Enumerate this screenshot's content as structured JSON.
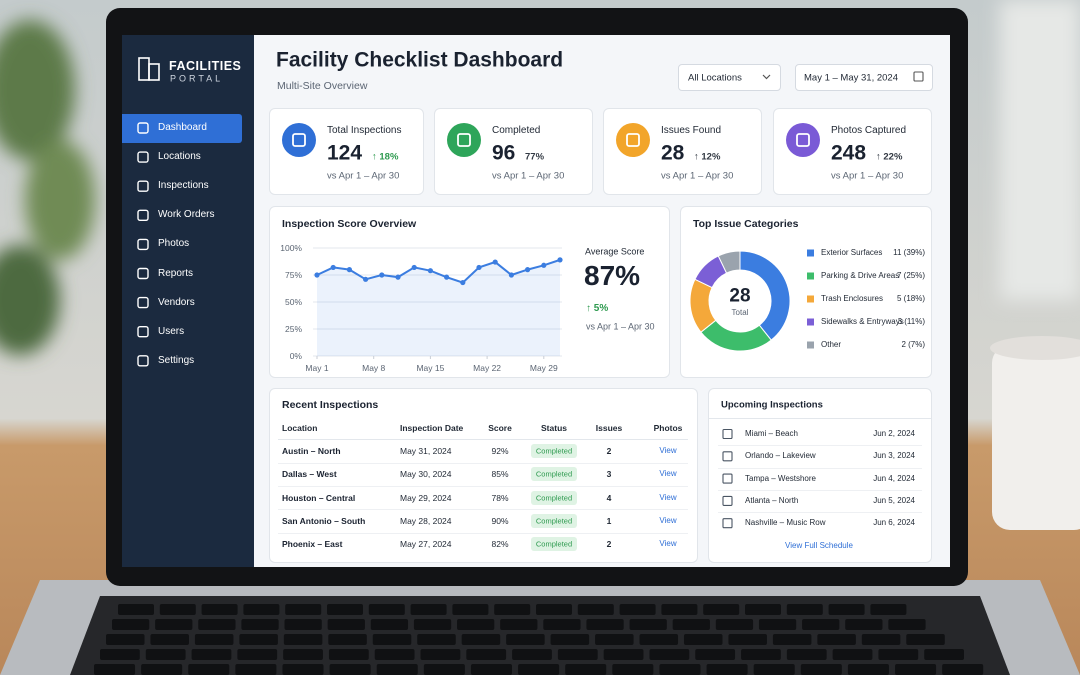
{
  "brand": {
    "name": "FACILITIES",
    "tagline": "PORTAL"
  },
  "nav": {
    "items": [
      "Dashboard",
      "Locations",
      "Inspections",
      "Work Orders",
      "Photos",
      "Reports",
      "Vendors",
      "Users",
      "Settings"
    ],
    "active": 0
  },
  "header": {
    "title": "Facility Checklist Dashboard",
    "subtitle": "Multi-Site Overview",
    "location_filter": "All Locations",
    "date_range": "May 1 – May 31, 2024"
  },
  "kpis": [
    {
      "label": "Total Inspections",
      "value": 124,
      "change": "↑ 18%",
      "change_color": "#2e9a4f",
      "compare": "vs Apr 1 – Apr 30",
      "color": "#2f6fd6"
    },
    {
      "label": "Completed",
      "value": 96,
      "change": "77%",
      "change_color": "#333a44",
      "compare": "vs Apr 1 – Apr 30",
      "color": "#2ea55a"
    },
    {
      "label": "Issues Found",
      "value": 28,
      "change": "↑ 12%",
      "change_color": "#333a44",
      "compare": "vs Apr 1 – Apr 30",
      "color": "#f2a52a"
    },
    {
      "label": "Photos Captured",
      "value": 248,
      "change": "↑ 22%",
      "change_color": "#333a44",
      "compare": "vs Apr 1 – Apr 30",
      "color": "#7a5ad6"
    }
  ],
  "score_chart": {
    "type": "line",
    "title": "Inspection Score Overview",
    "x": [
      1,
      3,
      5,
      7,
      9,
      11,
      13,
      15,
      17,
      19,
      21,
      23,
      25,
      27,
      29,
      31
    ],
    "values": [
      75,
      82,
      80,
      71,
      75,
      73,
      82,
      79,
      73,
      68,
      82,
      87,
      75,
      80,
      84,
      89
    ],
    "xlim": [
      1,
      31
    ],
    "xticks": [
      {
        "value": 1,
        "label": "May 1"
      },
      {
        "value": 8,
        "label": "May 8"
      },
      {
        "value": 15,
        "label": "May 15"
      },
      {
        "value": 22,
        "label": "May 22"
      },
      {
        "value": 29,
        "label": "May 29"
      }
    ],
    "ylim": [
      0,
      100
    ],
    "yticks": [
      {
        "value": 0,
        "label": "0%"
      },
      {
        "value": 25,
        "label": "25%"
      },
      {
        "value": 50,
        "label": "50%"
      },
      {
        "value": 75,
        "label": "75%"
      },
      {
        "value": 100,
        "label": "100%"
      }
    ],
    "color": "#3b7de0",
    "grid": true,
    "summary": {
      "label": "Average Score",
      "value": "87%",
      "change": "↑ 5%",
      "compare": "vs Apr 1 – Apr 30"
    }
  },
  "issues_chart": {
    "type": "pie",
    "title": "Top Issue Categories",
    "total": 28,
    "total_label": "Total",
    "categories": [
      "Exterior Surfaces",
      "Parking & Drive Areas",
      "Trash Enclosures",
      "Sidewalks & Entryways",
      "Other"
    ],
    "values": [
      11,
      7,
      5,
      3,
      2
    ],
    "value_labels": [
      "11 (39%)",
      "7 (25%)",
      "5 (18%)",
      "3 (11%)",
      "2 (7%)"
    ],
    "colors": [
      "#3b7de0",
      "#3dbd6b",
      "#f4a83a",
      "#7b5fd6",
      "#9aa3ad"
    ]
  },
  "recent_inspections": {
    "title": "Recent Inspections",
    "columns": [
      "Location",
      "Inspection Date",
      "Score",
      "Status",
      "Issues",
      "Photos"
    ],
    "rows": [
      [
        "Austin – North",
        "May 31, 2024",
        "92%",
        "Completed",
        2,
        "View"
      ],
      [
        "Dallas – West",
        "May 30, 2024",
        "85%",
        "Completed",
        3,
        "View"
      ],
      [
        "Houston – Central",
        "May 29, 2024",
        "78%",
        "Completed",
        4,
        "View"
      ],
      [
        "San Antonio – South",
        "May 28, 2024",
        "90%",
        "Completed",
        1,
        "View"
      ],
      [
        "Phoenix – East",
        "May 27, 2024",
        "82%",
        "Completed",
        2,
        "View"
      ]
    ]
  },
  "upcoming": {
    "title": "Upcoming Inspections",
    "items": [
      {
        "location": "Miami – Beach",
        "date": "Jun 2, 2024"
      },
      {
        "location": "Orlando – Lakeview",
        "date": "Jun 3, 2024"
      },
      {
        "location": "Tampa – Westshore",
        "date": "Jun 4, 2024"
      },
      {
        "location": "Atlanta – North",
        "date": "Jun 5, 2024"
      },
      {
        "location": "Nashville – Music Row",
        "date": "Jun 6, 2024"
      }
    ],
    "link": "View Full Schedule"
  }
}
